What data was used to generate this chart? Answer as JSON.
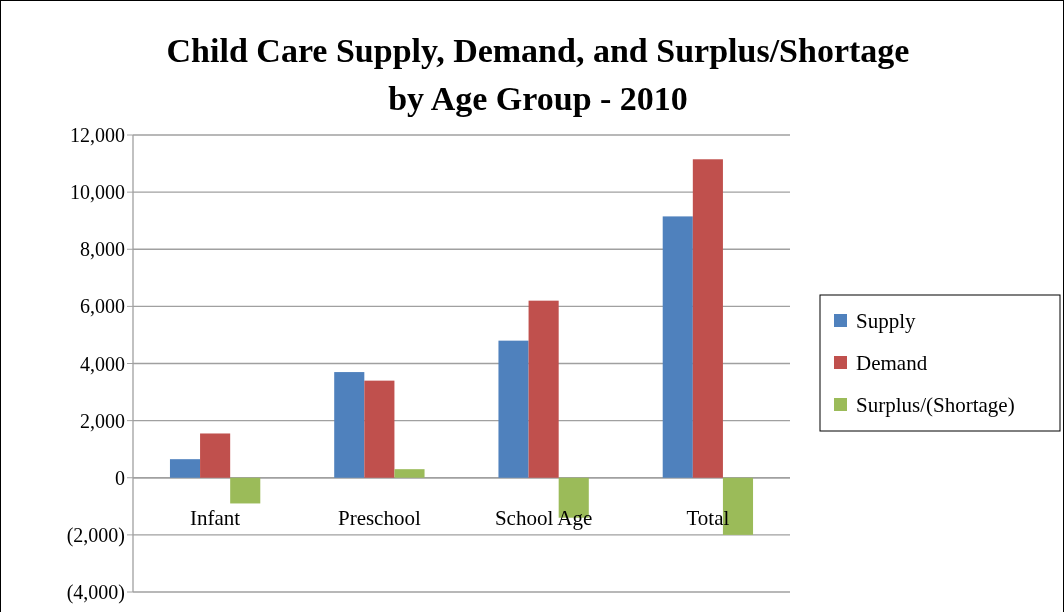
{
  "chart_data": {
    "type": "bar",
    "title": "Child Care Supply, Demand, and Surplus/Shortage\nby Age Group - 2010",
    "categories": [
      "Infant",
      "Preschool",
      "School Age",
      "Total"
    ],
    "series": [
      {
        "name": "Supply",
        "color": "#4f81bd",
        "values": [
          650,
          3700,
          4800,
          9150
        ]
      },
      {
        "name": "Demand",
        "color": "#c0504d",
        "values": [
          1550,
          3400,
          6200,
          11150
        ]
      },
      {
        "name": "Surplus/(Shortage)",
        "color": "#9bbb59",
        "values": [
          -900,
          300,
          -1400,
          -2000
        ]
      }
    ],
    "ylim": [
      -4000,
      12000
    ],
    "yticks": [
      {
        "value": -4000,
        "label": "(4,000)"
      },
      {
        "value": -2000,
        "label": "(2,000)"
      },
      0,
      {
        "value": 2000,
        "label": "2,000"
      },
      {
        "value": 4000,
        "label": "4,000"
      },
      {
        "value": 6000,
        "label": "6,000"
      },
      {
        "value": 8000,
        "label": "8,000"
      },
      {
        "value": 10000,
        "label": "10,000"
      },
      {
        "value": 12000,
        "label": "12,000"
      }
    ],
    "grid": "y",
    "legend": "right"
  }
}
